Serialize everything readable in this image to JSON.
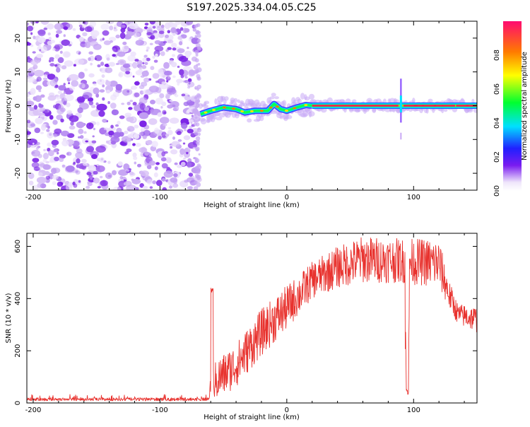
{
  "title": "S197.2025.334.04.05.C25",
  "chart_data": [
    {
      "type": "heatmap",
      "xlabel": "Height of straight line (km)",
      "ylabel": "Frequency (Hz)",
      "xlim": [
        -205,
        150
      ],
      "ylim": [
        -25,
        25
      ],
      "xticks": [
        -200,
        -100,
        0,
        100
      ],
      "yticks": [
        -20,
        -10,
        0,
        10,
        20
      ],
      "noise_region_x": [
        -205,
        -70
      ],
      "signal_ridge": [
        {
          "x": -68,
          "y": -2.5
        },
        {
          "x": -60,
          "y": -1.5
        },
        {
          "x": -50,
          "y": -0.5
        },
        {
          "x": -40,
          "y": -1.0
        },
        {
          "x": -33,
          "y": -2.0
        },
        {
          "x": -25,
          "y": -1.5
        },
        {
          "x": -15,
          "y": -1.5
        },
        {
          "x": -10,
          "y": 0.5
        },
        {
          "x": -5,
          "y": -1.0
        },
        {
          "x": 0,
          "y": -1.5
        },
        {
          "x": 8,
          "y": -0.5
        },
        {
          "x": 15,
          "y": 0.2
        },
        {
          "x": 20,
          "y": 0.0
        },
        {
          "x": 150,
          "y": 0.0
        }
      ],
      "spike_x": 90,
      "colorbar": {
        "label": "Normalized spectral amplitude",
        "ticks": [
          "0.0",
          "0.2",
          "0.4",
          "0.6",
          "0.8"
        ],
        "range": [
          0,
          1
        ]
      }
    },
    {
      "type": "line",
      "xlabel": "Height of straight line (km)",
      "ylabel": "SNR (10 * v/v)",
      "xlim": [
        -205,
        150
      ],
      "ylim": [
        0,
        650
      ],
      "xticks": [
        -200,
        -100,
        0,
        100
      ],
      "yticks": [
        0,
        200,
        400,
        600
      ],
      "series": [
        {
          "name": "SNR",
          "color": "#e8332f",
          "envelope": [
            {
              "x": -205,
              "lo": 5,
              "hi": 35
            },
            {
              "x": -62,
              "lo": 5,
              "hi": 35
            },
            {
              "x": -60,
              "lo": 20,
              "hi": 120
            },
            {
              "x": -55,
              "lo": 10,
              "hi": 170
            },
            {
              "x": -40,
              "lo": 60,
              "hi": 230
            },
            {
              "x": -20,
              "lo": 180,
              "hi": 360
            },
            {
              "x": 0,
              "lo": 280,
              "hi": 450
            },
            {
              "x": 20,
              "lo": 400,
              "hi": 540
            },
            {
              "x": 40,
              "lo": 440,
              "hi": 600
            },
            {
              "x": 60,
              "lo": 460,
              "hi": 640
            },
            {
              "x": 90,
              "lo": 460,
              "hi": 630
            },
            {
              "x": 120,
              "lo": 440,
              "hi": 630
            },
            {
              "x": 128,
              "lo": 360,
              "hi": 470
            },
            {
              "x": 135,
              "lo": 300,
              "hi": 380
            },
            {
              "x": 150,
              "lo": 270,
              "hi": 370
            }
          ],
          "spikes": [
            {
              "x": -59,
              "value": 430
            },
            {
              "x": 95,
              "value": 30
            }
          ]
        }
      ]
    }
  ]
}
